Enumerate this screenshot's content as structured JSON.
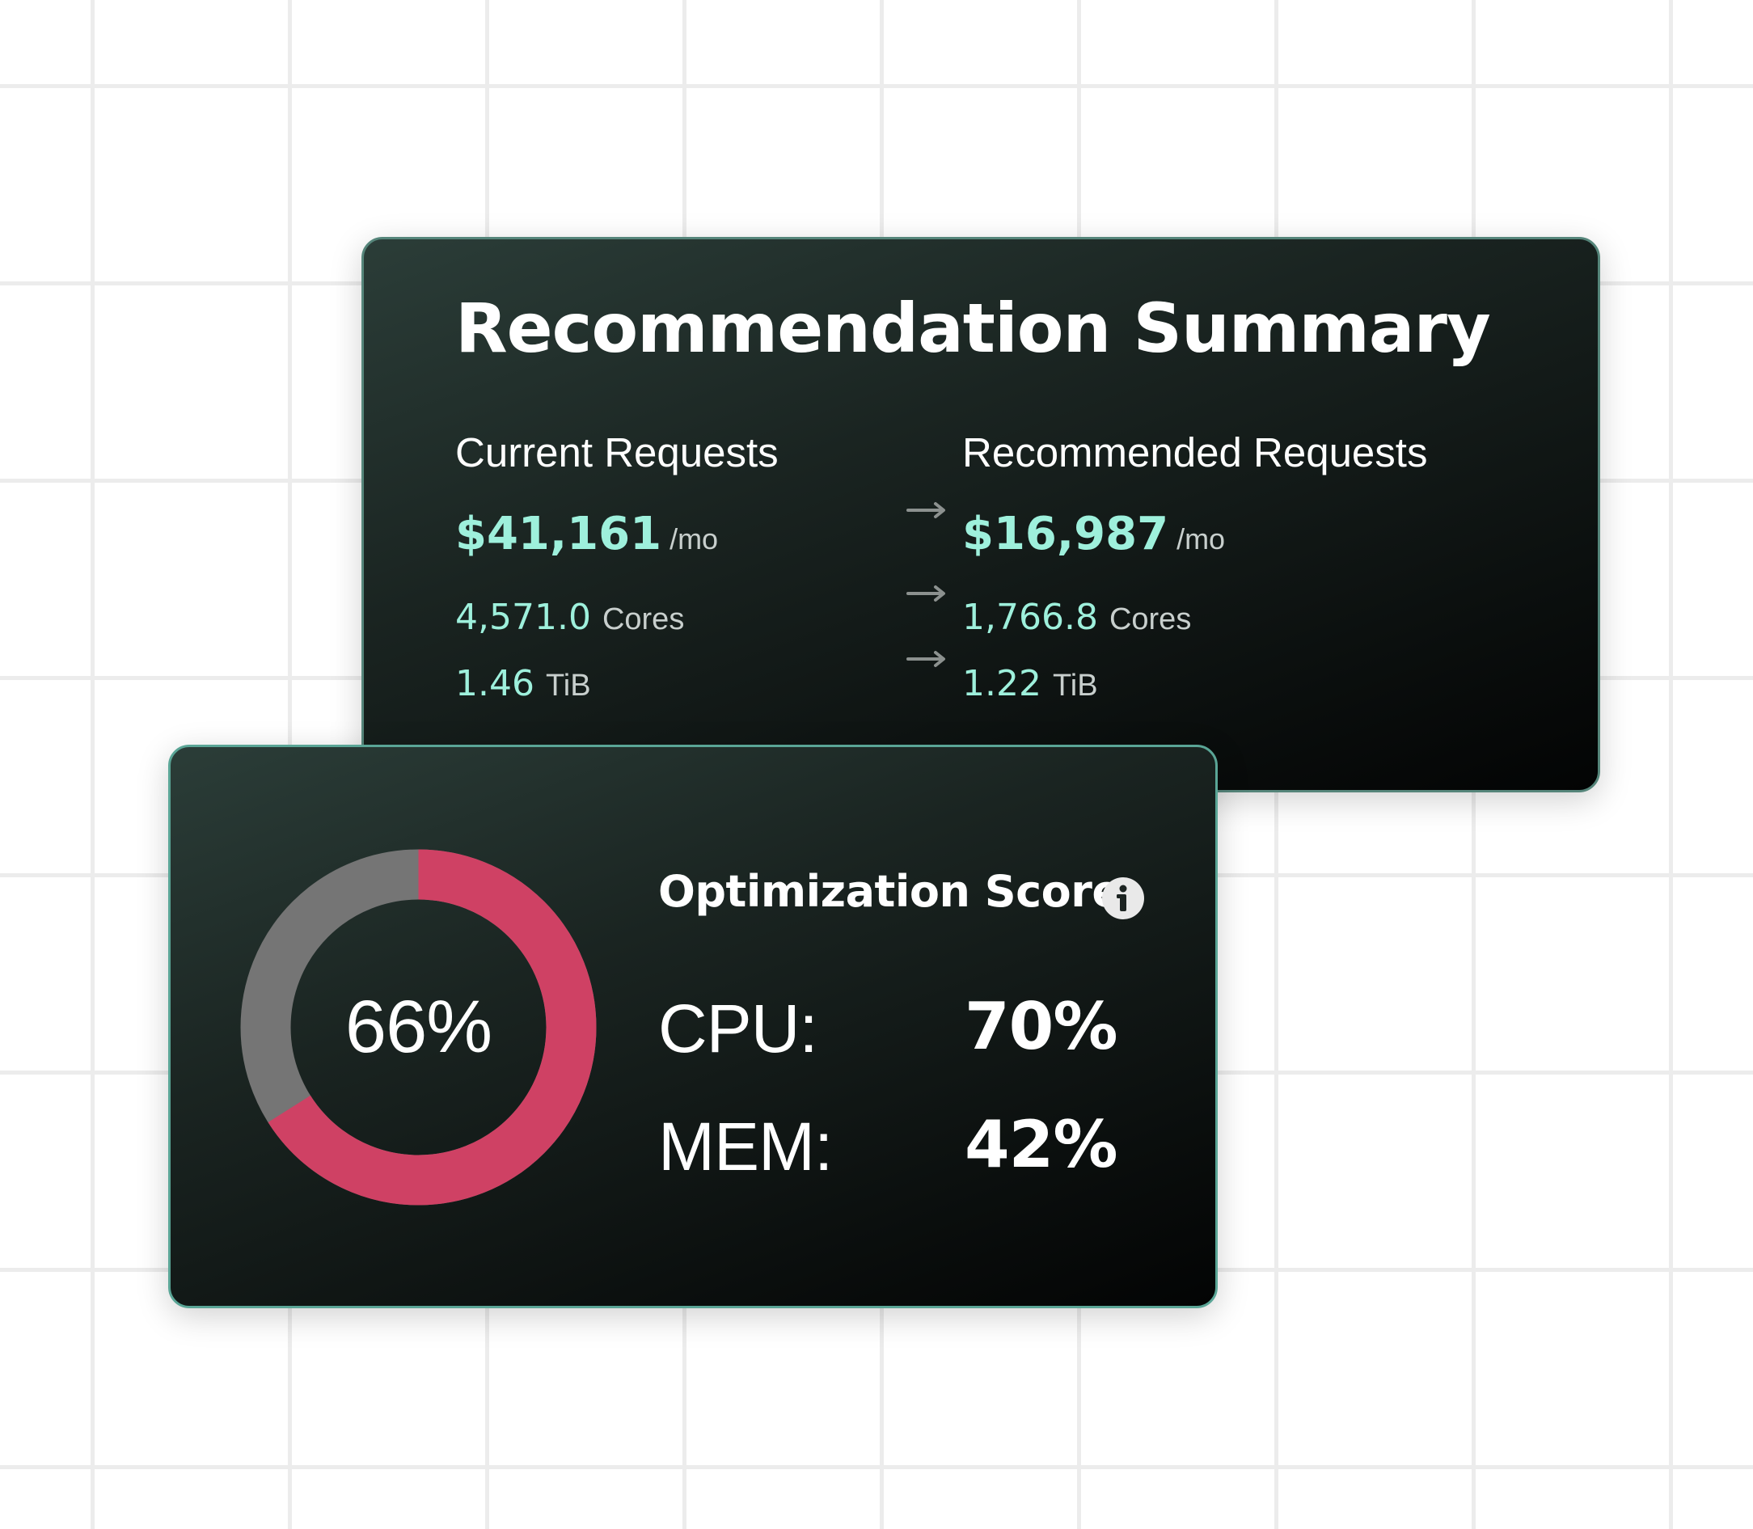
{
  "summary": {
    "title": "Recommendation Summary",
    "current": {
      "heading": "Current Requests",
      "cost_value": "$41,161",
      "cost_unit": "/mo",
      "cores_value": "4,571.0",
      "cores_unit": "Cores",
      "memory_value": "1.46",
      "memory_unit": "TiB"
    },
    "recommended": {
      "heading": "Recommended Requests",
      "cost_value": "$16,987",
      "cost_unit": "/mo",
      "cores_value": "1,766.8",
      "cores_unit": "Cores",
      "memory_value": "1.22",
      "memory_unit": "TiB"
    },
    "arrow_icon": "arrow-right-icon"
  },
  "optimization": {
    "title": "Optimization Score",
    "info_icon": "info-icon",
    "overall_label": "66%",
    "overall_fraction": 0.66,
    "cpu_label": "CPU:",
    "cpu_value": "70%",
    "mem_label": "MEM:",
    "mem_value": "42%"
  },
  "colors": {
    "accent_value": "#9ef0dc",
    "donut_progress": "#cf4164",
    "donut_track": "#757575",
    "card_border": "#55857a",
    "background_grid": "#ececec"
  }
}
